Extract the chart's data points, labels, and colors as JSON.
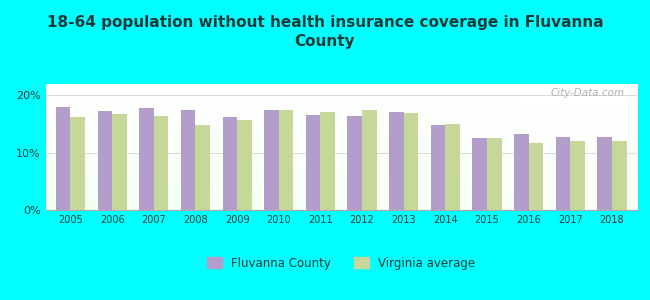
{
  "title": "18-64 population without health insurance coverage in Fluvanna\nCounty",
  "years": [
    2005,
    2006,
    2007,
    2008,
    2009,
    2010,
    2011,
    2012,
    2013,
    2014,
    2015,
    2016,
    2017,
    2018
  ],
  "fluvanna": [
    18.0,
    17.2,
    17.8,
    17.5,
    16.3,
    17.5,
    16.6,
    16.4,
    17.1,
    14.8,
    12.5,
    13.3,
    12.7,
    12.7
  ],
  "virginia": [
    16.2,
    16.8,
    16.5,
    14.8,
    15.8,
    17.4,
    17.1,
    17.4,
    17.0,
    15.0,
    12.5,
    11.7,
    12.1,
    12.0
  ],
  "fluvanna_color": "#b39dca",
  "virginia_color": "#c5d89a",
  "background_color": "#00ffff",
  "plot_bg_top": "#ffffff",
  "plot_bg_bottom": "#d8f0d8",
  "yticks": [
    0,
    10,
    20
  ],
  "ylim": [
    0,
    22
  ],
  "watermark": "City-Data.com",
  "legend_fluvanna": "Fluvanna County",
  "legend_virginia": "Virginia average",
  "bar_width": 0.35,
  "title_color": "#1a3a3a",
  "tick_color": "#1a3a3a"
}
